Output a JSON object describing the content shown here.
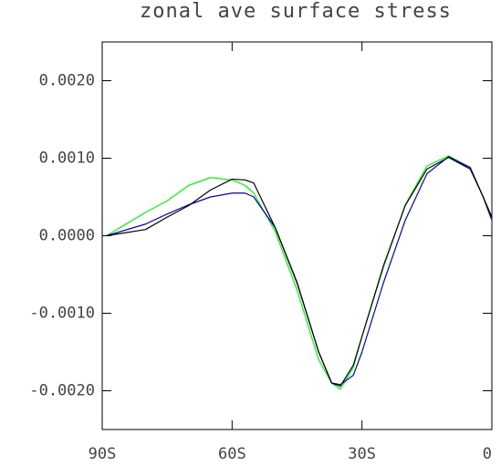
{
  "chart_data": {
    "type": "line",
    "title": "zonal ave surface stress",
    "x": [
      -89,
      -80,
      -75,
      -70,
      -65,
      -60,
      -57,
      -55,
      -50,
      -45,
      -40,
      -37,
      -35,
      -32,
      -30,
      -25,
      -20,
      -15,
      -10,
      -5,
      -2,
      0
    ],
    "series": [
      {
        "color": "#00ff00",
        "values": [
          0,
          0.0003,
          0.00045,
          0.00065,
          0.00075,
          0.00072,
          0.00065,
          0.00055,
          5e-05,
          -0.0007,
          -0.0016,
          -0.0019,
          -0.00198,
          -0.0017,
          -0.0013,
          -0.0004,
          0.0004,
          0.0009,
          0.00103,
          0.00088,
          0.0005,
          0.0002
        ]
      },
      {
        "color": "#0000cc",
        "values": [
          0,
          0.00015,
          0.00028,
          0.0004,
          0.0005,
          0.00055,
          0.00055,
          0.0005,
          0.0001,
          -0.0006,
          -0.0015,
          -0.0019,
          -0.00192,
          -0.0018,
          -0.0015,
          -0.0006,
          0.0002,
          0.0008,
          0.00102,
          0.00088,
          0.0005,
          0.0002
        ]
      },
      {
        "color": "#000000",
        "values": [
          0,
          8e-05,
          0.00024,
          0.00039,
          0.00059,
          0.00073,
          0.00072,
          0.00068,
          0.0001,
          -0.00061,
          -0.0015,
          -0.0019,
          -0.00194,
          -0.00167,
          -0.0013,
          -0.00038,
          0.00039,
          0.00086,
          0.00101,
          0.00086,
          0.0005,
          0.00024
        ]
      }
    ],
    "xlim": [
      -90,
      0
    ],
    "xticks": [
      {
        "value": -90,
        "label": "90S"
      },
      {
        "value": -60,
        "label": "60S"
      },
      {
        "value": -30,
        "label": "30S"
      },
      0
    ],
    "ylim": [
      -0.0025,
      0.0025
    ],
    "yticks": [
      {
        "value": -0.002,
        "label": "-0.0020"
      },
      {
        "value": -0.001,
        "label": "-0.0010"
      },
      {
        "value": 0,
        "label": "0.0000"
      },
      {
        "value": 0.001,
        "label": "0.0010"
      },
      {
        "value": 0.002,
        "label": "0.0020"
      }
    ],
    "grid": false
  }
}
